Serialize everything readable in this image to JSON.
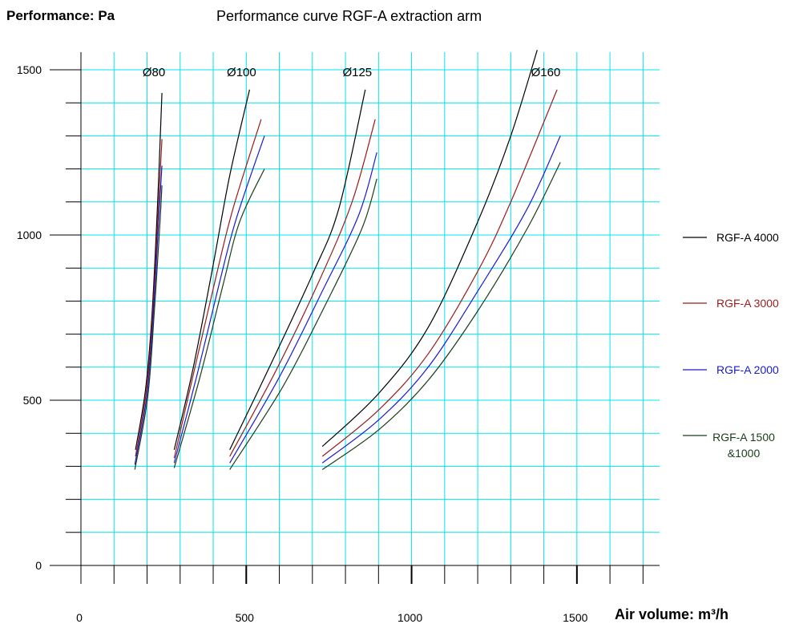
{
  "chart_data": {
    "type": "line",
    "title": "Performance curve RGF-A extraction arm",
    "ylabel": "Performance: Pa",
    "xlabel": "Air volume: m³/h",
    "xlim": [
      0,
      1750
    ],
    "ylim": [
      0,
      1500
    ],
    "x_ticks": [
      0,
      500,
      1000,
      1500
    ],
    "y_ticks": [
      0,
      500,
      1000,
      1500
    ],
    "grid": true,
    "legend_position": "right",
    "colors": {
      "grid": "#00e5f0",
      "RGF-A 4000": "#000000",
      "RGF-A 3000": "#9b1b1b",
      "RGF-A 2000": "#1a1ad0",
      "RGF-A 1500 &1000": "#1a3d1a"
    },
    "groups": [
      {
        "label": "Ø80",
        "series": [
          {
            "name": "RGF-A 4000",
            "points": [
              [
                165,
                350
              ],
              [
                195,
                530
              ],
              [
                215,
                760
              ],
              [
                232,
                1100
              ],
              [
                245,
                1430
              ]
            ]
          },
          {
            "name": "RGF-A 3000",
            "points": [
              [
                165,
                330
              ],
              [
                198,
                530
              ],
              [
                218,
                780
              ],
              [
                234,
                1080
              ],
              [
                245,
                1290
              ]
            ]
          },
          {
            "name": "RGF-A 2000",
            "points": [
              [
                163,
                305
              ],
              [
                200,
                520
              ],
              [
                220,
                780
              ],
              [
                236,
                1060
              ],
              [
                245,
                1210
              ]
            ]
          },
          {
            "name": "RGF-A 1500 &1000",
            "points": [
              [
                163,
                290
              ],
              [
                202,
                510
              ],
              [
                222,
                770
              ],
              [
                238,
                1020
              ],
              [
                245,
                1150
              ]
            ]
          }
        ]
      },
      {
        "label": "Ø100",
        "series": [
          {
            "name": "RGF-A 4000",
            "points": [
              [
                282,
                350
              ],
              [
                340,
                600
              ],
              [
                400,
                910
              ],
              [
                450,
                1180
              ],
              [
                510,
                1440
              ]
            ]
          },
          {
            "name": "RGF-A 3000",
            "points": [
              [
                282,
                325
              ],
              [
                345,
                600
              ],
              [
                410,
                880
              ],
              [
                460,
                1080
              ],
              [
                545,
                1350
              ]
            ]
          },
          {
            "name": "RGF-A 2000",
            "points": [
              [
                282,
                310
              ],
              [
                352,
                580
              ],
              [
                420,
                860
              ],
              [
                470,
                1050
              ],
              [
                555,
                1300
              ]
            ]
          },
          {
            "name": "RGF-A 1500 &1000",
            "points": [
              [
                282,
                295
              ],
              [
                360,
                570
              ],
              [
                430,
                850
              ],
              [
                480,
                1040
              ],
              [
                555,
                1200
              ]
            ]
          }
        ]
      },
      {
        "label": "Ø125",
        "series": [
          {
            "name": "RGF-A 4000",
            "points": [
              [
                450,
                350
              ],
              [
                570,
                600
              ],
              [
                700,
                880
              ],
              [
                780,
                1080
              ],
              [
                860,
                1440
              ]
            ]
          },
          {
            "name": "RGF-A 3000",
            "points": [
              [
                450,
                330
              ],
              [
                590,
                590
              ],
              [
                720,
                860
              ],
              [
                820,
                1100
              ],
              [
                890,
                1350
              ]
            ]
          },
          {
            "name": "RGF-A 2000",
            "points": [
              [
                450,
                310
              ],
              [
                600,
                570
              ],
              [
                730,
                830
              ],
              [
                840,
                1060
              ],
              [
                895,
                1250
              ]
            ]
          },
          {
            "name": "RGF-A 1500 &1000",
            "points": [
              [
                450,
                290
              ],
              [
                610,
                540
              ],
              [
                740,
                790
              ],
              [
                850,
                1020
              ],
              [
                895,
                1170
              ]
            ]
          }
        ]
      },
      {
        "label": "Ø160",
        "series": [
          {
            "name": "RGF-A 4000",
            "points": [
              [
                730,
                360
              ],
              [
                900,
                520
              ],
              [
                1050,
                720
              ],
              [
                1200,
                1040
              ],
              [
                1300,
                1300
              ],
              [
                1380,
                1560
              ]
            ]
          },
          {
            "name": "RGF-A 3000",
            "points": [
              [
                730,
                330
              ],
              [
                900,
                470
              ],
              [
                1050,
                640
              ],
              [
                1200,
                890
              ],
              [
                1300,
                1100
              ],
              [
                1440,
                1440
              ]
            ]
          },
          {
            "name": "RGF-A 2000",
            "points": [
              [
                730,
                310
              ],
              [
                900,
                440
              ],
              [
                1050,
                600
              ],
              [
                1200,
                830
              ],
              [
                1350,
                1080
              ],
              [
                1450,
                1300
              ]
            ]
          },
          {
            "name": "RGF-A 1500 &1000",
            "points": [
              [
                730,
                290
              ],
              [
                900,
                410
              ],
              [
                1050,
                560
              ],
              [
                1200,
                770
              ],
              [
                1350,
                1020
              ],
              [
                1450,
                1220
              ]
            ]
          }
        ]
      }
    ],
    "legend": [
      {
        "name": "RGF-A 4000",
        "label": "RGF-A 4000",
        "color": "#000000"
      },
      {
        "name": "RGF-A 3000",
        "label": "RGF-A 3000",
        "color": "#9b1b1b"
      },
      {
        "name": "RGF-A 2000",
        "label": "RGF-A 2000",
        "color": "#1a1ad0"
      },
      {
        "name": "RGF-A 1500 &1000",
        "label": "RGF-A 1500 &1000",
        "color": "#1a3d1a"
      }
    ]
  }
}
